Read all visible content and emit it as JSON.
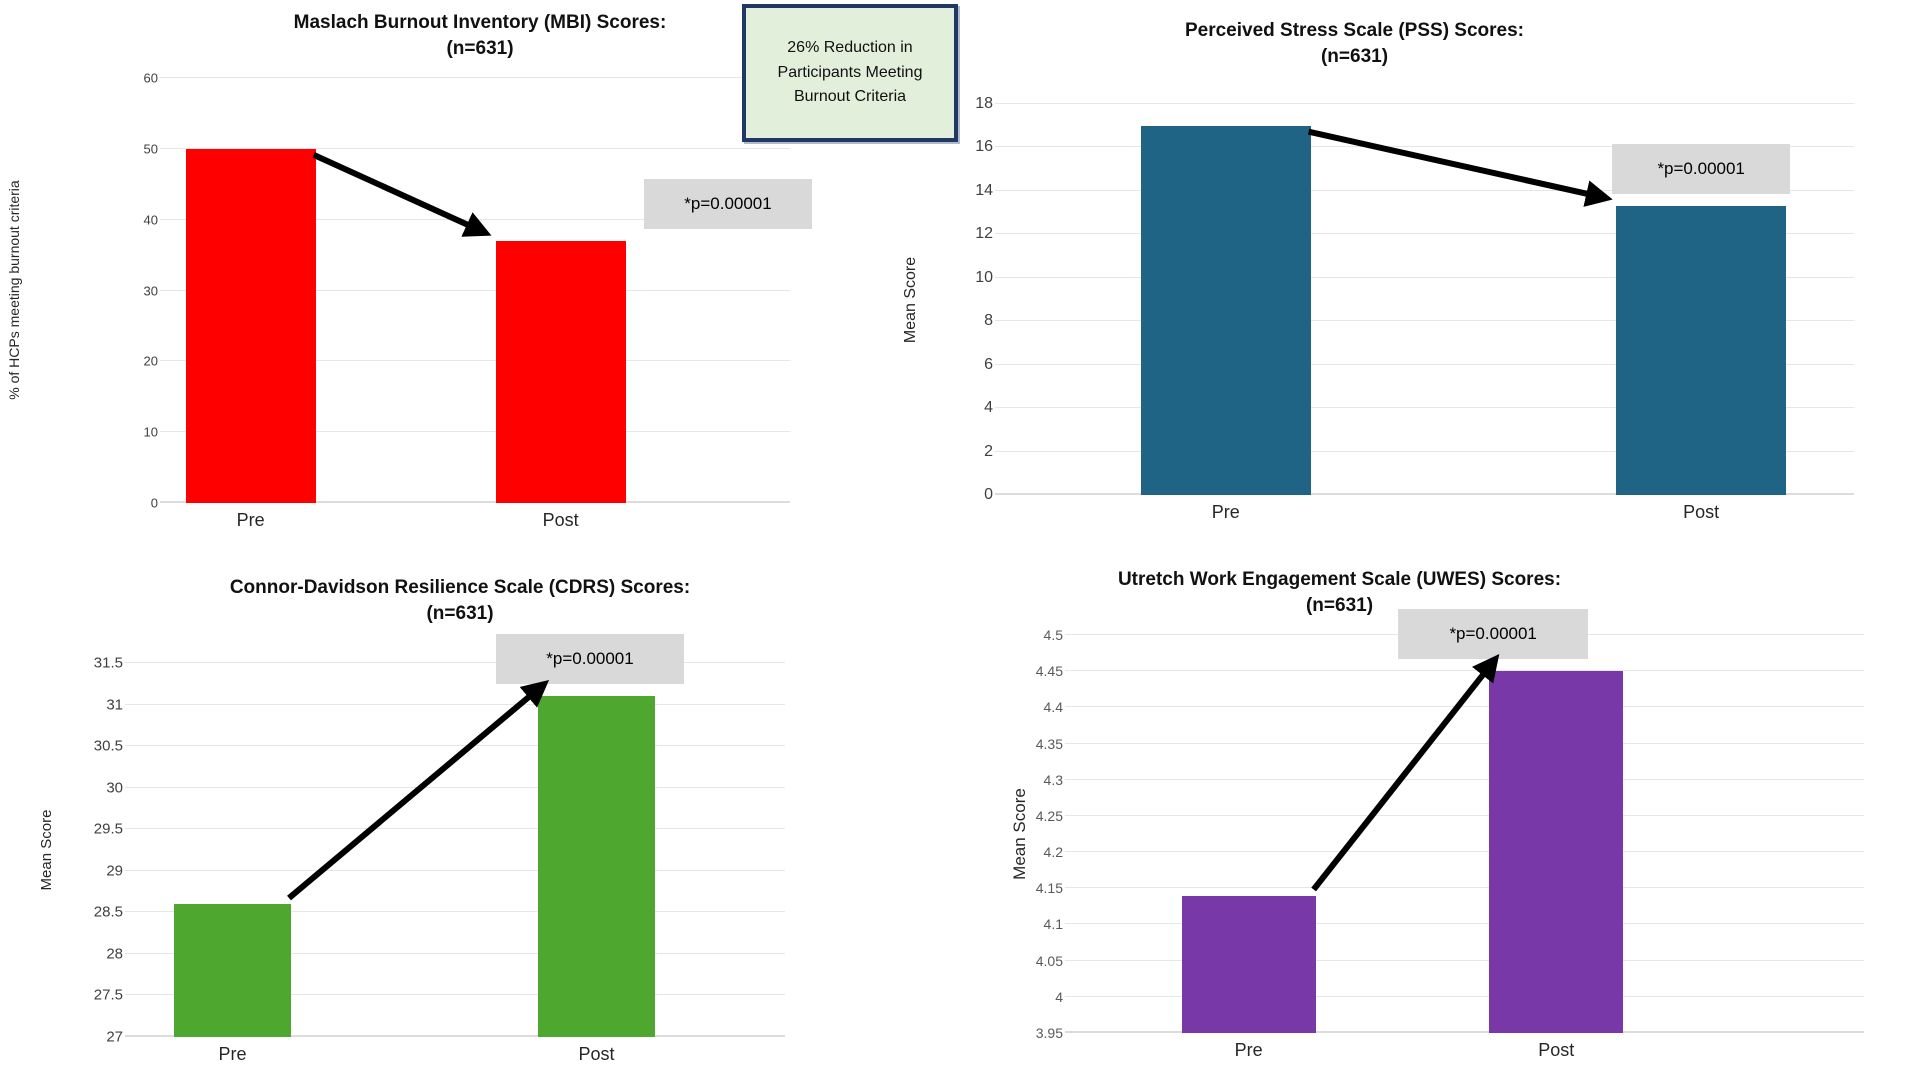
{
  "chart_data": [
    {
      "id": "mbi",
      "type": "bar",
      "title": "Maslach Burnout Inventory (MBI) Scores:",
      "subtitle": "(n=631)",
      "ylabel": "% of HCPs meeting burnout criteria",
      "categories": [
        "Pre",
        "Post"
      ],
      "values": [
        50,
        37
      ],
      "ylim": [
        0,
        60
      ],
      "yticks": [
        "0",
        "10",
        "20",
        "30",
        "40",
        "50",
        "60"
      ],
      "bar_color": "#ff0000",
      "p_label": "*p=0.00001",
      "arrow": "down",
      "grid": true,
      "legend": "none",
      "annotation": "26% Reduction in Participants Meeting Burnout Criteria",
      "annotation_bg": "#e2efda",
      "annotation_border": "#1f3864"
    },
    {
      "id": "pss",
      "type": "bar",
      "title": "Perceived Stress Scale (PSS) Scores:",
      "subtitle": "(n=631)",
      "ylabel": "Mean Score",
      "categories": [
        "Pre",
        "Post"
      ],
      "values": [
        17,
        13.3
      ],
      "ylim": [
        0,
        18
      ],
      "yticks": [
        "0",
        "2",
        "4",
        "6",
        "8",
        "10",
        "12",
        "14",
        "16",
        "18"
      ],
      "bar_color": "#1f6484",
      "p_label": "*p=0.00001",
      "arrow": "down",
      "grid": true,
      "legend": "none"
    },
    {
      "id": "cdrs",
      "type": "bar",
      "title": "Connor-Davidson Resilience Scale (CDRS) Scores:",
      "subtitle": "(n=631)",
      "ylabel": "Mean Score",
      "categories": [
        "Pre",
        "Post"
      ],
      "values": [
        28.6,
        31.1
      ],
      "ylim": [
        27,
        31.5
      ],
      "yticks": [
        "27",
        "27.5",
        "28",
        "28.5",
        "29",
        "29.5",
        "30",
        "30.5",
        "31",
        "31.5"
      ],
      "bar_color": "#4ea72e",
      "p_label": "*p=0.00001",
      "arrow": "up",
      "grid": true,
      "legend": "none"
    },
    {
      "id": "uwes",
      "type": "bar",
      "title": "Utretch Work Engagement Scale (UWES) Scores:",
      "subtitle": "(n=631)",
      "ylabel": "Mean Score",
      "categories": [
        "Pre",
        "Post"
      ],
      "values": [
        4.14,
        4.45
      ],
      "ylim": [
        3.95,
        4.5
      ],
      "yticks": [
        "3.95",
        "4",
        "4.05",
        "4.1",
        "4.15",
        "4.2",
        "4.25",
        "4.3",
        "4.35",
        "4.4",
        "4.45",
        "4.5"
      ],
      "bar_color": "#7838a8",
      "p_label": "*p=0.00001",
      "arrow": "up",
      "grid": true,
      "legend": "none"
    }
  ]
}
